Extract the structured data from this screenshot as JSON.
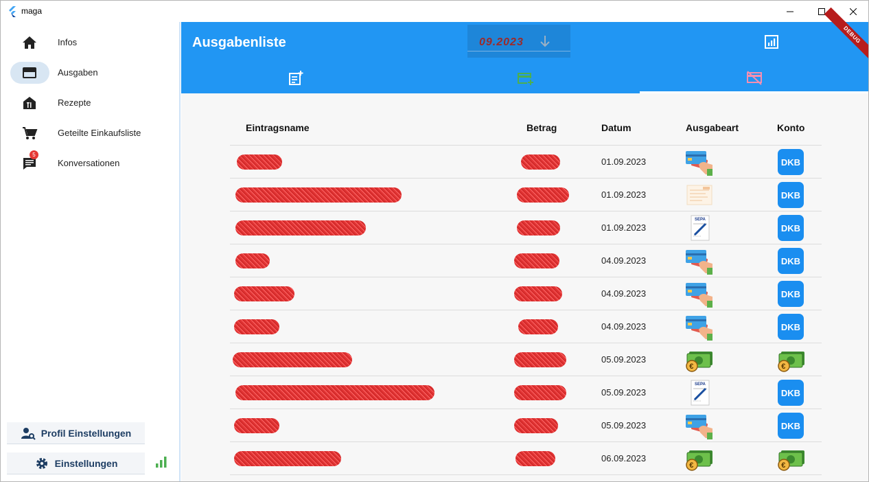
{
  "window": {
    "title": "maga"
  },
  "sidebar": {
    "items": [
      {
        "label": "Infos",
        "icon": "home-icon",
        "active": false
      },
      {
        "label": "Ausgaben",
        "icon": "credit-card-icon",
        "active": true
      },
      {
        "label": "Rezepte",
        "icon": "restaurant-icon",
        "active": false
      },
      {
        "label": "Geteilte Einkaufsliste",
        "icon": "shopping-cart-icon",
        "active": false
      },
      {
        "label": "Konversationen",
        "icon": "chat-icon",
        "active": false,
        "badge": "5"
      }
    ],
    "profile_button": "Profil Einstellungen",
    "settings_button": "Einstellungen"
  },
  "header": {
    "title": "Ausgabenliste",
    "month": "09.2023",
    "debug_banner": "DEBUG",
    "tabs": [
      {
        "icon": "add-note-icon",
        "color": "#ffffff"
      },
      {
        "icon": "add-card-icon",
        "color": "#4caf50"
      },
      {
        "icon": "card-off-icon",
        "color": "#f48fb1"
      }
    ],
    "accent": "#2196f3"
  },
  "table": {
    "columns": [
      "Eintragsname",
      "Betrag",
      "Datum",
      "Ausgabeart",
      "Konto"
    ],
    "rows": [
      {
        "date": "01.09.2023",
        "type": "card",
        "account": "DKB"
      },
      {
        "date": "01.09.2023",
        "type": "receipt",
        "account": "DKB"
      },
      {
        "date": "01.09.2023",
        "type": "sepa",
        "account": "DKB"
      },
      {
        "date": "04.09.2023",
        "type": "card",
        "account": "DKB"
      },
      {
        "date": "04.09.2023",
        "type": "card",
        "account": "DKB"
      },
      {
        "date": "04.09.2023",
        "type": "card",
        "account": "DKB"
      },
      {
        "date": "05.09.2023",
        "type": "cash",
        "account": "cash"
      },
      {
        "date": "05.09.2023",
        "type": "sepa",
        "account": "DKB"
      },
      {
        "date": "05.09.2023",
        "type": "card",
        "account": "DKB"
      },
      {
        "date": "06.09.2023",
        "type": "cash",
        "account": "cash"
      }
    ]
  }
}
